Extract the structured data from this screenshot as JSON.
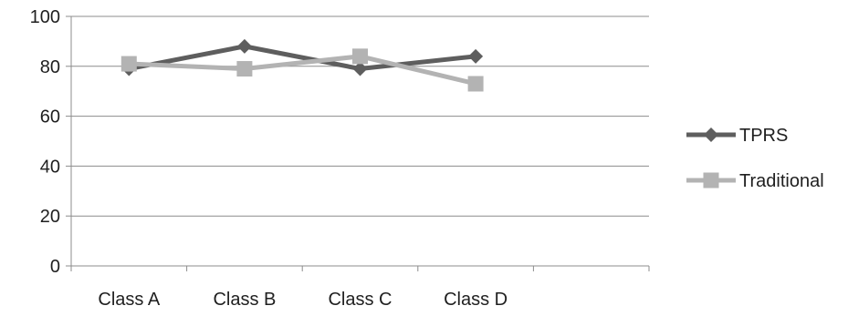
{
  "chart_data": {
    "type": "line",
    "categories": [
      "Class A",
      "Class B",
      "Class C",
      "Class D"
    ],
    "x_slots": 5,
    "series": [
      {
        "name": "TPRS",
        "values": [
          79,
          88,
          79,
          84
        ],
        "color": "#5e5e5e",
        "marker": "diamond"
      },
      {
        "name": "Traditional",
        "values": [
          81,
          79,
          84,
          73
        ],
        "color": "#b3b3b3",
        "marker": "square"
      }
    ],
    "title": "",
    "xlabel": "",
    "ylabel": "",
    "ylim": [
      0,
      100
    ],
    "yticks": [
      0,
      20,
      40,
      60,
      80,
      100
    ],
    "grid": true,
    "legend_position": "right"
  }
}
